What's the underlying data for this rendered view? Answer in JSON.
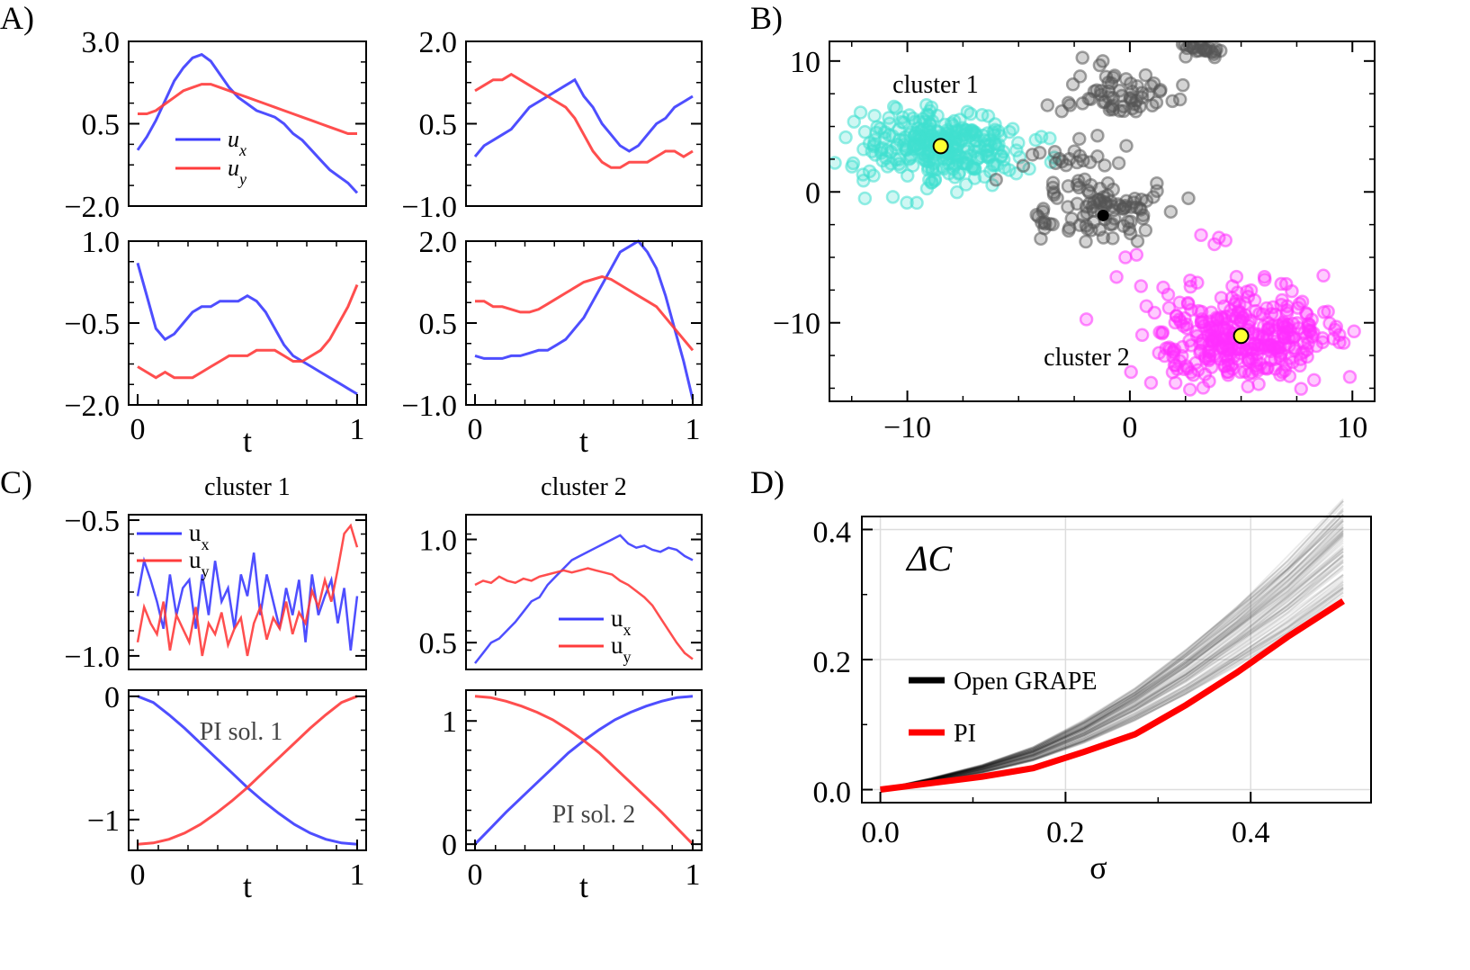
{
  "panel_labels": [
    "A)",
    "B)",
    "C)",
    "D)"
  ],
  "chart_data": [
    {
      "id": "A1",
      "type": "line",
      "ylim": [
        -2.0,
        3.0
      ],
      "yticks": [
        3.0,
        0.5,
        -2.0
      ],
      "tick_labels": [
        "3.0",
        "0.5",
        "−2.0"
      ],
      "legend": [
        "u",
        "x",
        "u",
        "y"
      ],
      "series": [
        {
          "name": "u_x",
          "color": "#3b3bff",
          "values": [
            -0.3,
            0.1,
            0.6,
            1.2,
            1.8,
            2.2,
            2.5,
            2.6,
            2.4,
            2.0,
            1.6,
            1.3,
            1.1,
            0.9,
            0.8,
            0.7,
            0.5,
            0.2,
            0.0,
            -0.3,
            -0.6,
            -0.9,
            -1.1,
            -1.3,
            -1.6
          ]
        },
        {
          "name": "u_y",
          "color": "#ff3b3b",
          "values": [
            0.8,
            0.8,
            0.9,
            1.1,
            1.3,
            1.5,
            1.6,
            1.7,
            1.7,
            1.6,
            1.5,
            1.4,
            1.3,
            1.2,
            1.1,
            1.0,
            0.9,
            0.8,
            0.7,
            0.6,
            0.5,
            0.4,
            0.3,
            0.2,
            0.2
          ]
        }
      ]
    },
    {
      "id": "A2",
      "type": "line",
      "ylim": [
        -1.0,
        2.0
      ],
      "yticks": [
        2.0,
        0.5,
        -1.0
      ],
      "tick_labels": [
        "2.0",
        "0.5",
        "−1.0"
      ],
      "series": [
        {
          "name": "u_x",
          "color": "#3b3bff",
          "values": [
            -0.1,
            0.1,
            0.2,
            0.3,
            0.4,
            0.6,
            0.8,
            0.9,
            1.0,
            1.1,
            1.2,
            1.3,
            1.0,
            0.8,
            0.5,
            0.3,
            0.1,
            0.0,
            0.1,
            0.3,
            0.5,
            0.6,
            0.8,
            0.9,
            1.0
          ]
        },
        {
          "name": "u_y",
          "color": "#ff3b3b",
          "values": [
            1.1,
            1.2,
            1.3,
            1.3,
            1.4,
            1.3,
            1.2,
            1.1,
            1.0,
            0.9,
            0.8,
            0.6,
            0.3,
            0.0,
            -0.2,
            -0.3,
            -0.3,
            -0.2,
            -0.2,
            -0.2,
            -0.1,
            0.0,
            0.0,
            -0.1,
            0.0
          ]
        }
      ]
    },
    {
      "id": "A3",
      "type": "line",
      "ylim": [
        -2.0,
        1.0
      ],
      "yticks": [
        1.0,
        -0.5,
        -2.0
      ],
      "tick_labels": [
        "1.0",
        "−0.5",
        "−2.0"
      ],
      "xticks": [
        0,
        1
      ],
      "xlabel": "t",
      "series": [
        {
          "name": "u_x",
          "color": "#3b3bff",
          "values": [
            0.6,
            0.0,
            -0.6,
            -0.8,
            -0.7,
            -0.5,
            -0.3,
            -0.2,
            -0.2,
            -0.1,
            -0.1,
            -0.1,
            0.0,
            -0.1,
            -0.3,
            -0.6,
            -0.9,
            -1.1,
            -1.2,
            -1.3,
            -1.4,
            -1.5,
            -1.6,
            -1.7,
            -1.8
          ]
        },
        {
          "name": "u_y",
          "color": "#ff3b3b",
          "values": [
            -1.3,
            -1.4,
            -1.5,
            -1.4,
            -1.5,
            -1.5,
            -1.5,
            -1.4,
            -1.3,
            -1.2,
            -1.1,
            -1.1,
            -1.1,
            -1.0,
            -1.0,
            -1.0,
            -1.1,
            -1.2,
            -1.2,
            -1.1,
            -1.0,
            -0.8,
            -0.5,
            -0.2,
            0.2
          ]
        }
      ]
    },
    {
      "id": "A4",
      "type": "line",
      "ylim": [
        -1.0,
        2.0
      ],
      "yticks": [
        2.0,
        0.5,
        -1.0
      ],
      "tick_labels": [
        "2.0",
        "0.5",
        "−1.0"
      ],
      "xticks": [
        0,
        1
      ],
      "xlabel": "t",
      "series": [
        {
          "name": "u_x",
          "color": "#3b3bff",
          "values": [
            -0.1,
            -0.15,
            -0.15,
            -0.15,
            -0.1,
            -0.1,
            -0.05,
            0.0,
            0.0,
            0.1,
            0.2,
            0.4,
            0.6,
            0.9,
            1.2,
            1.5,
            1.8,
            1.9,
            2.0,
            1.8,
            1.5,
            1.0,
            0.4,
            -0.2,
            -0.9
          ]
        },
        {
          "name": "u_y",
          "color": "#ff3b3b",
          "values": [
            0.9,
            0.9,
            0.8,
            0.8,
            0.75,
            0.7,
            0.7,
            0.75,
            0.85,
            0.95,
            1.05,
            1.15,
            1.25,
            1.3,
            1.35,
            1.3,
            1.2,
            1.1,
            1.0,
            0.9,
            0.8,
            0.6,
            0.4,
            0.2,
            0.0
          ]
        }
      ]
    },
    {
      "id": "B",
      "type": "scatter",
      "xlim": [
        -13.5,
        11
      ],
      "ylim": [
        -16,
        11.5
      ],
      "xticks": [
        -10,
        0,
        10
      ],
      "xtick_labels": [
        "−10",
        "0",
        "10"
      ],
      "yticks": [
        10,
        0,
        -10
      ],
      "ytick_labels": [
        "10",
        "0",
        "−10"
      ],
      "annotations": [
        "cluster 1",
        "cluster 2"
      ],
      "series": [
        {
          "name": "cluster 1",
          "color": "#40e0d0",
          "center": [
            -8.5,
            3.5
          ],
          "spread": [
            1.8,
            1.4
          ],
          "count": 300
        },
        {
          "name": "cluster 2",
          "color": "#ff30ff",
          "center": [
            5.0,
            -11.0
          ],
          "spread": [
            2.0,
            1.8
          ],
          "count": 350
        },
        {
          "name": "other",
          "color": "#555555",
          "count": 200
        }
      ],
      "centroids": [
        [
          -8.5,
          3.5
        ],
        [
          5.0,
          -11.0
        ]
      ],
      "centroid_color": "#ffff33"
    },
    {
      "id": "C1",
      "type": "line",
      "title": "cluster 1",
      "ylim": [
        -1.05,
        -0.48
      ],
      "yticks": [
        -0.5,
        -1.0
      ],
      "tick_labels": [
        "−0.5",
        "−1.0"
      ],
      "legend": [
        "u",
        "x",
        "u",
        "y"
      ],
      "series": [
        {
          "name": "u_x",
          "color": "#3b3bff",
          "values": [
            -0.78,
            -0.65,
            -0.72,
            -0.8,
            -0.9,
            -0.7,
            -0.85,
            -0.75,
            -0.72,
            -0.9,
            -0.7,
            -0.85,
            -0.65,
            -0.8,
            -0.75,
            -0.9,
            -0.7,
            -0.78,
            -0.62,
            -0.85,
            -0.7,
            -0.8,
            -0.9,
            -0.75,
            -0.85,
            -0.72,
            -0.95,
            -0.7,
            -0.85,
            -0.78,
            -0.72,
            -0.88,
            -0.75,
            -0.98,
            -0.78
          ]
        },
        {
          "name": "u_y",
          "color": "#ff3b3b",
          "values": [
            -0.95,
            -0.82,
            -0.88,
            -0.92,
            -0.8,
            -0.98,
            -0.85,
            -0.9,
            -0.95,
            -0.82,
            -1.0,
            -0.88,
            -0.92,
            -0.84,
            -0.96,
            -0.9,
            -0.86,
            -1.0,
            -0.88,
            -0.82,
            -0.94,
            -0.86,
            -0.9,
            -0.8,
            -0.92,
            -0.84,
            -0.88,
            -0.76,
            -0.82,
            -0.72,
            -0.8,
            -0.68,
            -0.55,
            -0.52,
            -0.6
          ]
        }
      ]
    },
    {
      "id": "C2",
      "type": "line",
      "title": "cluster 2",
      "ylim": [
        0.37,
        1.12
      ],
      "yticks": [
        1.0,
        0.5
      ],
      "tick_labels": [
        "1.0",
        "0.5"
      ],
      "legend": [
        "u",
        "x",
        "u",
        "y"
      ],
      "series": [
        {
          "name": "u_x",
          "color": "#3b3bff",
          "values": [
            0.4,
            0.45,
            0.5,
            0.52,
            0.56,
            0.6,
            0.65,
            0.7,
            0.72,
            0.78,
            0.82,
            0.86,
            0.9,
            0.92,
            0.94,
            0.96,
            0.98,
            1.0,
            1.02,
            0.98,
            0.96,
            0.97,
            0.95,
            0.94,
            0.96,
            0.95,
            0.92,
            0.9
          ]
        },
        {
          "name": "u_y",
          "color": "#ff3b3b",
          "values": [
            0.78,
            0.8,
            0.79,
            0.82,
            0.8,
            0.79,
            0.81,
            0.8,
            0.82,
            0.83,
            0.84,
            0.85,
            0.84,
            0.85,
            0.86,
            0.85,
            0.84,
            0.83,
            0.8,
            0.78,
            0.75,
            0.72,
            0.68,
            0.62,
            0.56,
            0.5,
            0.45,
            0.42
          ]
        }
      ]
    },
    {
      "id": "C3",
      "type": "line",
      "ylim": [
        -1.25,
        0.05
      ],
      "yticks": [
        0,
        -1
      ],
      "tick_labels": [
        "0",
        "−1"
      ],
      "xticks": [
        0,
        1
      ],
      "xlabel": "t",
      "annotation": "PI sol. 1",
      "series": [
        {
          "name": "u_x",
          "color": "#3b3bff",
          "values": [
            0.0,
            -0.05,
            -0.15,
            -0.26,
            -0.38,
            -0.5,
            -0.62,
            -0.74,
            -0.85,
            -0.95,
            -1.04,
            -1.11,
            -1.16,
            -1.19,
            -1.2
          ]
        },
        {
          "name": "u_y",
          "color": "#ff3b3b",
          "values": [
            -1.2,
            -1.19,
            -1.16,
            -1.11,
            -1.04,
            -0.95,
            -0.85,
            -0.74,
            -0.62,
            -0.5,
            -0.38,
            -0.26,
            -0.15,
            -0.05,
            0.0
          ]
        }
      ]
    },
    {
      "id": "C4",
      "type": "line",
      "ylim": [
        -0.05,
        1.25
      ],
      "yticks": [
        1,
        0
      ],
      "tick_labels": [
        "1",
        "0"
      ],
      "xticks": [
        0,
        1
      ],
      "xlabel": "t",
      "annotation": "PI sol. 2",
      "series": [
        {
          "name": "u_x",
          "color": "#3b3bff",
          "values": [
            0.0,
            0.13,
            0.26,
            0.38,
            0.5,
            0.62,
            0.74,
            0.84,
            0.93,
            1.01,
            1.07,
            1.12,
            1.16,
            1.19,
            1.2
          ]
        },
        {
          "name": "u_y",
          "color": "#ff3b3b",
          "values": [
            1.2,
            1.19,
            1.16,
            1.12,
            1.07,
            1.01,
            0.93,
            0.84,
            0.74,
            0.62,
            0.5,
            0.38,
            0.26,
            0.13,
            0.0
          ]
        }
      ]
    },
    {
      "id": "D",
      "type": "line",
      "xlim": [
        -0.02,
        0.53
      ],
      "ylim": [
        -0.02,
        0.42
      ],
      "xticks": [
        0.0,
        0.2,
        0.4
      ],
      "xtick_labels": [
        "0.0",
        "0.2",
        "0.4"
      ],
      "yticks": [
        0.4,
        0.2,
        0.0
      ],
      "ytick_labels": [
        "0.4",
        "0.2",
        "0.0"
      ],
      "xlabel": "σ",
      "annotation": "ΔC",
      "legend": [
        "Open GRAPE",
        "PI"
      ],
      "grid": true,
      "series": [
        {
          "name": "PI",
          "color": "#ff0000",
          "x": [
            0.0,
            0.055,
            0.11,
            0.165,
            0.22,
            0.275,
            0.33,
            0.385,
            0.44,
            0.5
          ],
          "values": [
            0.0,
            0.01,
            0.02,
            0.033,
            0.058,
            0.085,
            0.13,
            0.18,
            0.235,
            0.29
          ]
        },
        {
          "name": "Open GRAPE",
          "color": "#000000",
          "x": [
            0.0,
            0.055,
            0.11,
            0.165,
            0.22,
            0.275,
            0.33,
            0.385,
            0.44,
            0.5
          ],
          "values": [
            0.0,
            0.013,
            0.028,
            0.048,
            0.078,
            0.115,
            0.158,
            0.208,
            0.26,
            0.325
          ]
        }
      ]
    }
  ]
}
